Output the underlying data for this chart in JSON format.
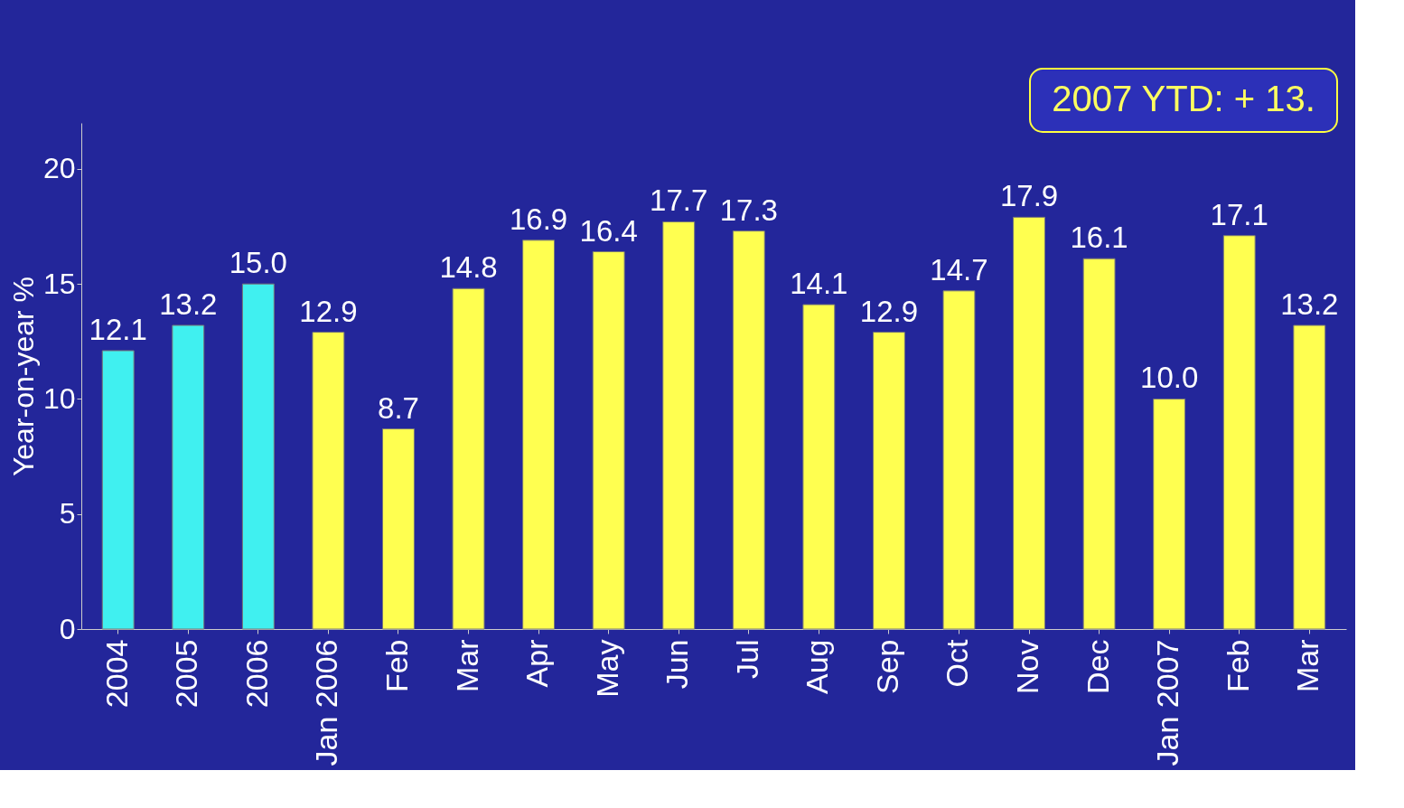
{
  "chart_data": {
    "type": "bar",
    "ylabel": "Year-on-year %",
    "categories": [
      "2004",
      "2005",
      "2006",
      "Jan 2006",
      "Feb",
      "Mar",
      "Apr",
      "May",
      "Jun",
      "Jul",
      "Aug",
      "Sep",
      "Oct",
      "Nov",
      "Dec",
      "Jan 2007",
      "Feb",
      "Mar"
    ],
    "values": [
      12.1,
      13.2,
      15.0,
      12.9,
      8.7,
      14.8,
      16.9,
      16.4,
      17.7,
      17.3,
      14.1,
      12.9,
      14.7,
      17.9,
      16.1,
      10.0,
      17.1,
      13.2
    ],
    "colors": [
      "#40f0f0",
      "#40f0f0",
      "#40f0f0",
      "#ffff50",
      "#ffff50",
      "#ffff50",
      "#ffff50",
      "#ffff50",
      "#ffff50",
      "#ffff50",
      "#ffff50",
      "#ffff50",
      "#ffff50",
      "#ffff50",
      "#ffff50",
      "#ffff50",
      "#ffff50",
      "#ffff50"
    ],
    "value_labels": [
      "12.1",
      "13.2",
      "15.0",
      "12.9",
      "8.7",
      "14.8",
      "16.9",
      "16.4",
      "17.7",
      "17.3",
      "14.1",
      "12.9",
      "14.7",
      "17.9",
      "16.1",
      "10.0",
      "17.1",
      "13.2"
    ],
    "ylim": [
      0,
      22
    ],
    "yticks": [
      0,
      5,
      10,
      15,
      20
    ],
    "grid": false,
    "annotations": [
      "2007 YTD: + 13."
    ]
  }
}
